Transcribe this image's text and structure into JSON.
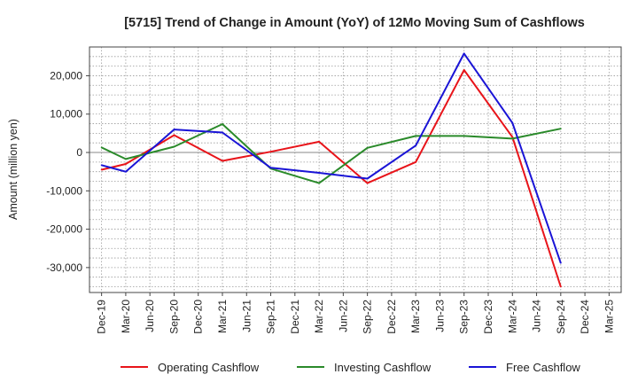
{
  "chart_data": {
    "type": "line",
    "title": "[5715]  Trend of Change in Amount (YoY) of 12Mo Moving Sum of Cashflows",
    "xlabel": "",
    "ylabel": "Amount (million yen)",
    "categories": [
      "Dec-19",
      "Mar-20",
      "Jun-20",
      "Sep-20",
      "Dec-20",
      "Mar-21",
      "Jun-21",
      "Sep-21",
      "Dec-21",
      "Mar-22",
      "Jun-22",
      "Sep-22",
      "Dec-22",
      "Mar-23",
      "Jun-23",
      "Sep-23",
      "Dec-23",
      "Mar-24",
      "Jun-24",
      "Sep-24",
      "Dec-24",
      "Mar-25"
    ],
    "ylim": [
      -36500,
      27500
    ],
    "yticks": [
      -30000,
      -20000,
      -10000,
      0,
      10000,
      20000
    ],
    "ytick_labels": [
      "-30,000",
      "-20,000",
      "-10,000",
      "0",
      "10,000",
      "20,000"
    ],
    "grid": true,
    "legend_position": "bottom",
    "series": [
      {
        "name": "Operating Cashflow",
        "color": "#e8141a",
        "values": [
          -4500,
          -3000,
          null,
          4500,
          null,
          -2200,
          null,
          200,
          null,
          2800,
          null,
          -8000,
          null,
          -2500,
          null,
          21500,
          null,
          4000,
          null,
          -35000,
          null,
          null
        ]
      },
      {
        "name": "Investing Cashflow",
        "color": "#2a8a2a",
        "values": [
          1300,
          -1700,
          null,
          1500,
          null,
          7400,
          null,
          -4200,
          null,
          -8000,
          null,
          1200,
          null,
          4300,
          null,
          4300,
          null,
          3600,
          null,
          6200,
          null,
          null
        ]
      },
      {
        "name": "Free Cashflow",
        "color": "#1a14d6",
        "values": [
          -3300,
          -5000,
          null,
          6000,
          null,
          5200,
          null,
          -4000,
          null,
          -5300,
          null,
          -6800,
          null,
          1800,
          null,
          25800,
          null,
          7700,
          null,
          -28800,
          null,
          null
        ]
      }
    ]
  }
}
